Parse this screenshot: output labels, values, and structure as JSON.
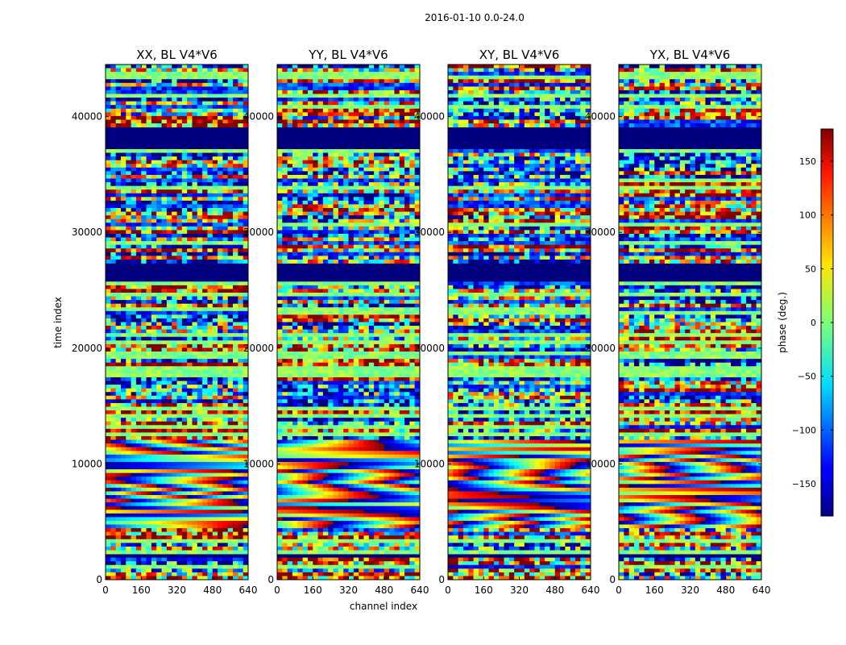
{
  "figure": {
    "suptitle": "2016-01-10 0.0-24.0"
  },
  "chart_data": {
    "type": "heatmap",
    "title": "2016-01-10 0.0-24.0",
    "xlabel": "channel index",
    "ylabel": "time index",
    "xlim": [
      0,
      640
    ],
    "ylim": [
      0,
      44500
    ],
    "x_ticks": [
      0,
      160,
      320,
      480,
      640
    ],
    "y_ticks": [
      0,
      10000,
      20000,
      30000,
      40000
    ],
    "panels": [
      {
        "title": "XX, BL V4*V6",
        "polarization": "XX"
      },
      {
        "title": "YY, BL V4*V6",
        "polarization": "YY"
      },
      {
        "title": "XY, BL V4*V6",
        "polarization": "XY"
      },
      {
        "title": "YX, BL V4*V6",
        "polarization": "YX"
      }
    ],
    "colormap": "jet",
    "colorbar": {
      "label": "phase (deg.)",
      "range": [
        -180,
        180
      ],
      "ticks": [
        150,
        100,
        50,
        0,
        -50,
        -100,
        -150
      ],
      "tick_labels": [
        "150",
        "100",
        "50",
        "0",
        "−50",
        "−100",
        "−150"
      ]
    },
    "flagged_time_ranges": [
      [
        37200,
        39200
      ],
      [
        25800,
        27400
      ],
      [
        1800,
        2300
      ]
    ],
    "fringe_region": [
      4300,
      12000
    ]
  }
}
